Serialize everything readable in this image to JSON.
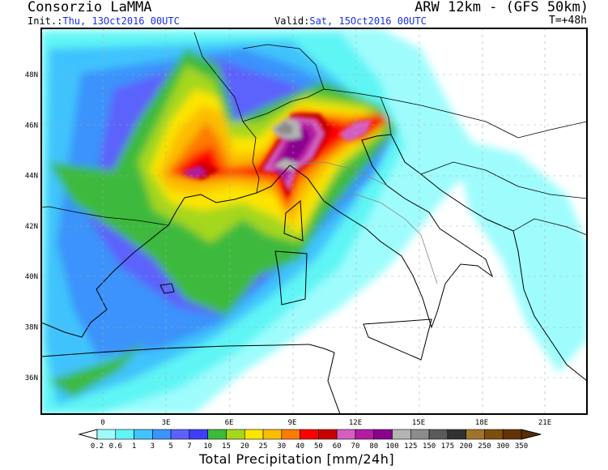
{
  "header": {
    "org": "Consorzio LaMMA",
    "model": "ARW 12km  - (GFS 50km)",
    "init_label": "Init.:",
    "init_value": "Thu, 13Oct2016 00UTC",
    "valid_label": "Valid:",
    "valid_value": "Sat, 15Oct2016 00UTC",
    "timestep": "T=+48h"
  },
  "map": {
    "lat_labels": [
      "48N",
      "46N",
      "44N",
      "42N",
      "40N",
      "38N",
      "36N"
    ],
    "lon_labels": [
      "0",
      "3E",
      "6E",
      "9E",
      "12E",
      "15E",
      "18E",
      "21E"
    ]
  },
  "colorbar": {
    "title": "Total Precipitation [mm/24h]",
    "levels": [
      "0.2",
      "0.6",
      "1",
      "3",
      "5",
      "7",
      "10",
      "15",
      "20",
      "25",
      "30",
      "40",
      "50",
      "60",
      "70",
      "80",
      "100",
      "125",
      "150",
      "175",
      "200",
      "250",
      "300",
      "350"
    ],
    "colors": [
      "#9ffcfc",
      "#5ff5f5",
      "#41c3fc",
      "#3b93fb",
      "#5b62fc",
      "#3d3dfc",
      "#3cba3c",
      "#a5d71b",
      "#fce500",
      "#fcbd00",
      "#fc7c00",
      "#fc0000",
      "#c80000",
      "#d45fc0",
      "#b41ca0",
      "#8c0090",
      "#b4b4b4",
      "#8c8c8c",
      "#5a5a5a",
      "#323232",
      "#a0742a",
      "#7d4f0a",
      "#643205"
    ],
    "over_color": "#5a2d05",
    "under_color": "#ffffff"
  }
}
